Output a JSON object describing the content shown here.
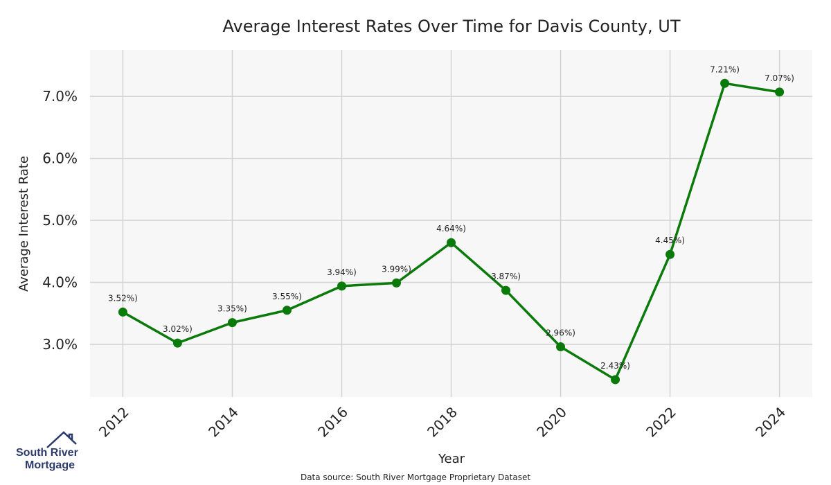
{
  "chart_data": {
    "type": "line",
    "title": "Average Interest Rates Over Time for Davis County, UT",
    "xlabel": "Year",
    "ylabel": "Average Interest Rate",
    "x": [
      2012,
      2013,
      2014,
      2015,
      2016,
      2017,
      2018,
      2019,
      2020,
      2021,
      2022,
      2023,
      2024
    ],
    "series": [
      {
        "values": [
          3.52,
          3.02,
          3.35,
          3.55,
          3.94,
          3.99,
          4.64,
          3.87,
          2.96,
          2.43,
          4.45,
          7.21,
          7.07
        ],
        "labels": [
          "3.52%)",
          "3.02%)",
          "3.35%)",
          "3.55%)",
          "3.94%)",
          "3.99%)",
          "4.64%)",
          "3.87%)",
          "2.96%)",
          "2.43%)",
          "4.45%)",
          "7.21%)",
          "7.07%)"
        ]
      }
    ],
    "x_ticks": [
      2012,
      2014,
      2016,
      2018,
      2020,
      2022,
      2024
    ],
    "x_tick_labels": [
      "2012",
      "2014",
      "2016",
      "2018",
      "2020",
      "2022",
      "2024"
    ],
    "y_ticks": [
      3.0,
      4.0,
      5.0,
      6.0,
      7.0
    ],
    "y_tick_labels": [
      "3.0%",
      "4.0%",
      "5.0%",
      "6.0%",
      "7.0%"
    ],
    "xlim": [
      2011.4,
      2024.6
    ],
    "ylim": [
      2.15,
      7.75
    ],
    "grid": true,
    "colors": {
      "line": "#0a7a0a",
      "marker": "#0a7a0a",
      "background": "#f7f7f7",
      "grid": "#d2d2d2"
    }
  },
  "source_note": "Data source: South River Mortgage Proprietary Dataset",
  "logo": {
    "line1": "South River",
    "line2": "Mortgage",
    "icon": "house-roof-icon",
    "color": "#2b3a6b"
  }
}
